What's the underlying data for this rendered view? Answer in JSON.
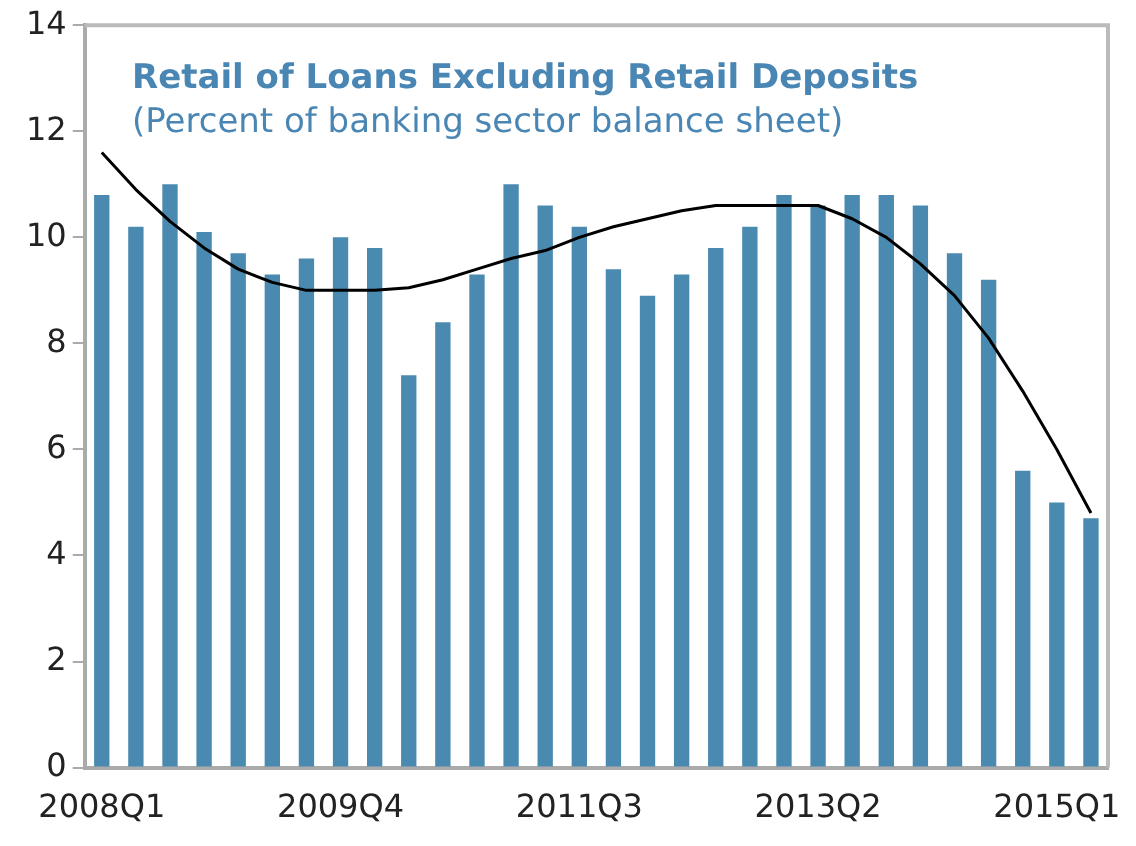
{
  "chart_data": {
    "type": "bar",
    "title": "Retail of Loans Excluding Retail Deposits",
    "subtitle": "(Percent of banking sector balance sheet)",
    "categories": [
      "2008Q1",
      null,
      null,
      null,
      null,
      null,
      null,
      "2009Q4",
      null,
      null,
      null,
      null,
      null,
      null,
      "2011Q3",
      null,
      null,
      null,
      null,
      null,
      null,
      "2013Q2",
      null,
      null,
      null,
      null,
      null,
      null,
      "2015Q1",
      null
    ],
    "series": [
      {
        "color": "#4a8ab0",
        "values": [
          10.8,
          10.2,
          11.0,
          10.1,
          9.7,
          9.3,
          9.6,
          10.0,
          9.8,
          7.4,
          8.4,
          9.3,
          11.0,
          10.6,
          10.2,
          9.4,
          8.9,
          9.3,
          9.8,
          10.2,
          10.8,
          10.6,
          10.8,
          10.8,
          10.6,
          9.7,
          9.2,
          5.6,
          5.0,
          4.7
        ]
      },
      {
        "type": "line",
        "color": "#000000",
        "values": [
          11.6,
          10.9,
          10.3,
          9.8,
          9.4,
          9.15,
          9.0,
          9.0,
          9.0,
          9.05,
          9.2,
          9.4,
          9.6,
          9.75,
          10.0,
          10.2,
          10.35,
          10.5,
          10.6,
          10.6,
          10.6,
          10.6,
          10.35,
          10.0,
          9.5,
          8.9,
          8.1,
          7.1,
          6.0,
          4.8
        ]
      }
    ],
    "ylim": [
      0,
      14
    ],
    "yticks": [
      0,
      2,
      4,
      6,
      8,
      10,
      12,
      14
    ],
    "grid": false,
    "legend": false,
    "marker": "none"
  }
}
